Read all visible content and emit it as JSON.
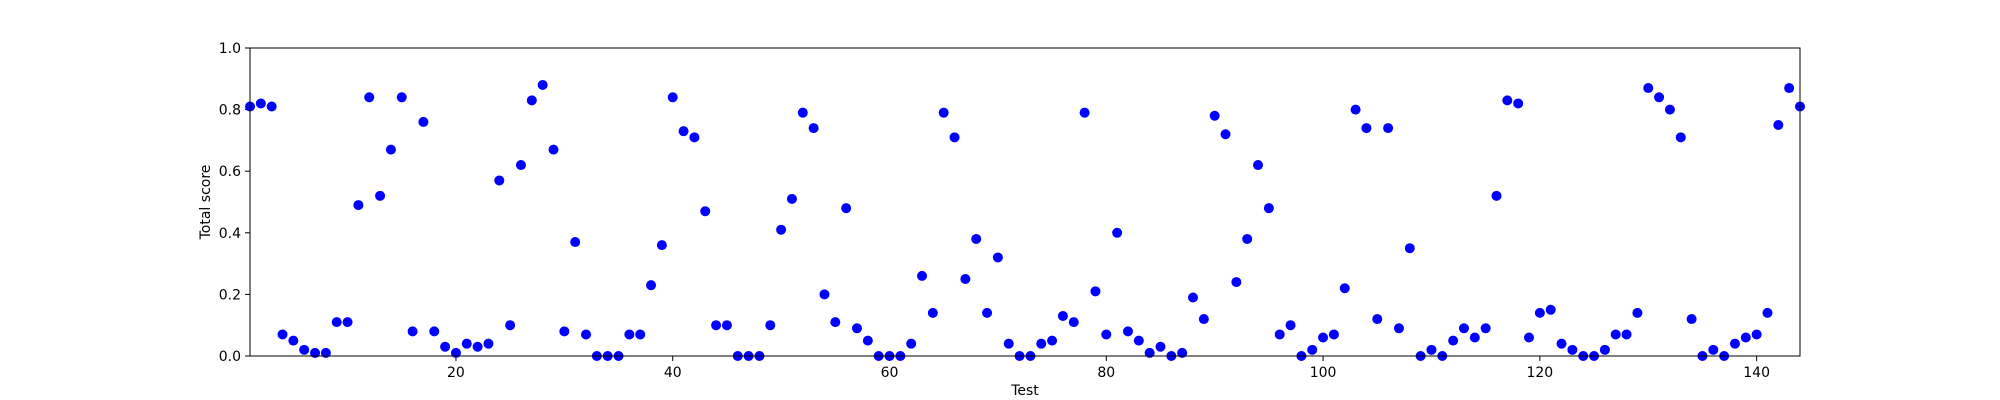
{
  "chart_data": {
    "type": "scatter",
    "title": "",
    "xlabel": "Test",
    "ylabel": "Total score",
    "xlim": [
      1,
      144
    ],
    "ylim": [
      0.0,
      1.0
    ],
    "x_ticks": [
      20,
      40,
      60,
      80,
      100,
      120,
      140
    ],
    "x_tick_labels": [
      "20",
      "40",
      "60",
      "80",
      "100",
      "120",
      "140"
    ],
    "y_ticks": [
      0.0,
      0.2,
      0.4,
      0.6,
      0.8,
      1.0
    ],
    "y_tick_labels": [
      "0.0",
      "0.2",
      "0.4",
      "0.6",
      "0.8",
      "1.0"
    ],
    "grid": false,
    "marker_color": "#0000ff",
    "points": [
      [
        1,
        0.81
      ],
      [
        2,
        0.82
      ],
      [
        3,
        0.81
      ],
      [
        4,
        0.07
      ],
      [
        5,
        0.05
      ],
      [
        6,
        0.02
      ],
      [
        7,
        0.01
      ],
      [
        8,
        0.01
      ],
      [
        9,
        0.11
      ],
      [
        10,
        0.11
      ],
      [
        11,
        0.49
      ],
      [
        12,
        0.84
      ],
      [
        13,
        0.52
      ],
      [
        14,
        0.67
      ],
      [
        15,
        0.84
      ],
      [
        16,
        0.08
      ],
      [
        17,
        0.76
      ],
      [
        18,
        0.08
      ],
      [
        19,
        0.03
      ],
      [
        20,
        0.01
      ],
      [
        21,
        0.04
      ],
      [
        22,
        0.03
      ],
      [
        23,
        0.04
      ],
      [
        24,
        0.57
      ],
      [
        25,
        0.1
      ],
      [
        26,
        0.62
      ],
      [
        27,
        0.83
      ],
      [
        28,
        0.88
      ],
      [
        29,
        0.67
      ],
      [
        30,
        0.08
      ],
      [
        31,
        0.37
      ],
      [
        32,
        0.07
      ],
      [
        33,
        0.0
      ],
      [
        34,
        0.0
      ],
      [
        35,
        0.0
      ],
      [
        36,
        0.07
      ],
      [
        37,
        0.07
      ],
      [
        38,
        0.23
      ],
      [
        39,
        0.36
      ],
      [
        40,
        0.84
      ],
      [
        41,
        0.73
      ],
      [
        42,
        0.71
      ],
      [
        43,
        0.47
      ],
      [
        44,
        0.1
      ],
      [
        45,
        0.1
      ],
      [
        46,
        0.0
      ],
      [
        47,
        0.0
      ],
      [
        48,
        0.0
      ],
      [
        49,
        0.1
      ],
      [
        50,
        0.41
      ],
      [
        51,
        0.51
      ],
      [
        52,
        0.79
      ],
      [
        53,
        0.74
      ],
      [
        54,
        0.2
      ],
      [
        55,
        0.11
      ],
      [
        56,
        0.48
      ],
      [
        57,
        0.09
      ],
      [
        58,
        0.05
      ],
      [
        59,
        0.0
      ],
      [
        60,
        0.0
      ],
      [
        61,
        0.0
      ],
      [
        62,
        0.04
      ],
      [
        63,
        0.26
      ],
      [
        64,
        0.14
      ],
      [
        65,
        0.79
      ],
      [
        66,
        0.71
      ],
      [
        67,
        0.25
      ],
      [
        68,
        0.38
      ],
      [
        69,
        0.14
      ],
      [
        70,
        0.32
      ],
      [
        71,
        0.04
      ],
      [
        72,
        0.0
      ],
      [
        73,
        0.0
      ],
      [
        74,
        0.04
      ],
      [
        75,
        0.05
      ],
      [
        76,
        0.13
      ],
      [
        77,
        0.11
      ],
      [
        78,
        0.79
      ],
      [
        79,
        0.21
      ],
      [
        80,
        0.07
      ],
      [
        81,
        0.4
      ],
      [
        82,
        0.08
      ],
      [
        83,
        0.05
      ],
      [
        84,
        0.01
      ],
      [
        85,
        0.03
      ],
      [
        86,
        0.0
      ],
      [
        87,
        0.01
      ],
      [
        88,
        0.19
      ],
      [
        89,
        0.12
      ],
      [
        90,
        0.78
      ],
      [
        91,
        0.72
      ],
      [
        92,
        0.24
      ],
      [
        93,
        0.38
      ],
      [
        94,
        0.62
      ],
      [
        95,
        0.48
      ],
      [
        96,
        0.07
      ],
      [
        97,
        0.1
      ],
      [
        98,
        0.0
      ],
      [
        99,
        0.02
      ],
      [
        100,
        0.06
      ],
      [
        101,
        0.07
      ],
      [
        102,
        0.22
      ],
      [
        103,
        0.8
      ],
      [
        104,
        0.74
      ],
      [
        105,
        0.12
      ],
      [
        106,
        0.74
      ],
      [
        107,
        0.09
      ],
      [
        108,
        0.35
      ],
      [
        109,
        0.0
      ],
      [
        110,
        0.02
      ],
      [
        111,
        0.0
      ],
      [
        112,
        0.05
      ],
      [
        113,
        0.09
      ],
      [
        114,
        0.06
      ],
      [
        115,
        0.09
      ],
      [
        116,
        0.52
      ],
      [
        117,
        0.83
      ],
      [
        118,
        0.82
      ],
      [
        119,
        0.06
      ],
      [
        120,
        0.14
      ],
      [
        121,
        0.15
      ],
      [
        122,
        0.04
      ],
      [
        123,
        0.02
      ],
      [
        124,
        0.0
      ],
      [
        125,
        0.0
      ],
      [
        126,
        0.02
      ],
      [
        127,
        0.07
      ],
      [
        128,
        0.07
      ],
      [
        129,
        0.14
      ],
      [
        130,
        0.87
      ],
      [
        131,
        0.84
      ],
      [
        132,
        0.8
      ],
      [
        133,
        0.71
      ],
      [
        134,
        0.12
      ],
      [
        135,
        0.0
      ],
      [
        136,
        0.02
      ],
      [
        137,
        0.0
      ],
      [
        138,
        0.04
      ],
      [
        139,
        0.06
      ],
      [
        140,
        0.07
      ],
      [
        141,
        0.14
      ],
      [
        142,
        0.75
      ],
      [
        143,
        0.87
      ],
      [
        144,
        0.81
      ]
    ]
  }
}
